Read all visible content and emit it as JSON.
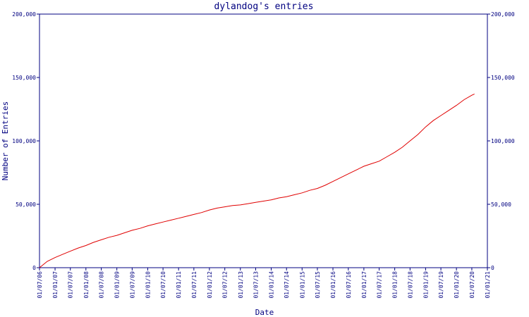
{
  "chart_data": {
    "type": "line",
    "title": "dylandog's entries",
    "xlabel": "Date",
    "ylabel": "Number of Entries",
    "ylim": [
      0,
      200000
    ],
    "y_ticks": [
      0,
      50000,
      100000,
      150000,
      200000
    ],
    "y_tick_labels": [
      "0",
      "50,000",
      "100,000",
      "150,000",
      "200,000"
    ],
    "x_ticks": [
      "2006-07-01",
      "2007-01-01",
      "2007-07-01",
      "2008-01-01",
      "2008-07-01",
      "2009-01-01",
      "2009-07-01",
      "2010-01-01",
      "2010-07-01",
      "2011-01-01",
      "2011-07-01",
      "2012-01-01",
      "2012-07-01",
      "2013-01-01",
      "2013-07-01",
      "2014-01-01",
      "2014-07-01",
      "2015-01-01",
      "2015-07-01",
      "2016-01-01",
      "2016-07-01",
      "2017-01-01",
      "2017-07-01",
      "2018-01-01",
      "2018-07-01",
      "2019-01-01",
      "2019-07-01",
      "2020-01-01",
      "2020-07-01",
      "2021-01-01"
    ],
    "x_tick_labels": [
      "01/07/06",
      "01/01/07",
      "01/07/07",
      "01/01/08",
      "01/07/08",
      "01/01/09",
      "01/07/09",
      "01/01/10",
      "01/07/10",
      "01/01/11",
      "01/07/11",
      "01/01/12",
      "01/07/12",
      "01/01/13",
      "01/07/13",
      "01/01/14",
      "01/07/14",
      "01/01/15",
      "01/07/15",
      "01/01/16",
      "01/07/16",
      "01/01/17",
      "01/07/17",
      "01/01/18",
      "01/07/18",
      "01/01/19",
      "01/07/19",
      "01/01/20",
      "01/07/20",
      "01/01/21"
    ],
    "xlim": [
      "2006-07-01",
      "2021-01-01"
    ],
    "grid": false,
    "colors": {
      "axis": "#000080",
      "series": "#e00000",
      "background": "#ffffff"
    },
    "series": [
      {
        "x": [
          "2006-07-01",
          "2006-10-01",
          "2007-01-01",
          "2007-04-01",
          "2007-07-01",
          "2007-10-01",
          "2008-01-01",
          "2008-04-01",
          "2008-07-01",
          "2008-10-01",
          "2009-01-01",
          "2009-04-01",
          "2009-07-01",
          "2009-10-01",
          "2010-01-01",
          "2010-04-01",
          "2010-07-01",
          "2010-10-01",
          "2011-01-01",
          "2011-04-01",
          "2011-07-01",
          "2011-10-01",
          "2012-01-01",
          "2012-04-01",
          "2012-07-01",
          "2012-10-01",
          "2013-01-01",
          "2013-04-01",
          "2013-07-01",
          "2013-10-01",
          "2014-01-01",
          "2014-04-01",
          "2014-07-01",
          "2014-10-01",
          "2015-01-01",
          "2015-04-01",
          "2015-07-01",
          "2015-10-01",
          "2016-01-01",
          "2016-04-01",
          "2016-07-01",
          "2016-10-01",
          "2017-01-01",
          "2017-04-01",
          "2017-07-01",
          "2017-10-01",
          "2018-01-01",
          "2018-04-01",
          "2018-07-01",
          "2018-10-01",
          "2019-01-01",
          "2019-04-01",
          "2019-07-01",
          "2019-10-01",
          "2020-01-01",
          "2020-04-01",
          "2020-07-01",
          "2020-08-01"
        ],
        "y": [
          0,
          5000,
          8000,
          10500,
          13000,
          15500,
          17500,
          20000,
          22000,
          24000,
          25500,
          27500,
          29500,
          31000,
          33000,
          34500,
          36000,
          37500,
          39000,
          40500,
          42000,
          43500,
          45500,
          47000,
          48000,
          49000,
          49500,
          50500,
          51500,
          52500,
          53500,
          55000,
          56000,
          57500,
          59000,
          61000,
          62500,
          65000,
          68000,
          71000,
          74000,
          77000,
          80000,
          82000,
          84000,
          87500,
          91000,
          95000,
          100000,
          105000,
          111000,
          116000,
          120000,
          124000,
          128000,
          132500,
          136000,
          137000
        ]
      }
    ]
  }
}
